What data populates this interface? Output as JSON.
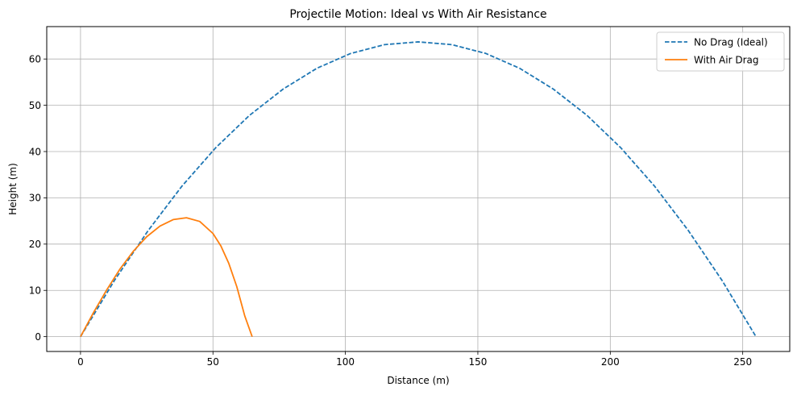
{
  "chart_data": {
    "type": "line",
    "title": "Projectile Motion: Ideal vs With Air Resistance",
    "xlabel": "Distance (m)",
    "ylabel": "Height (m)",
    "xlim": [
      -12.75,
      267.75
    ],
    "ylim": [
      -3.2,
      67
    ],
    "xticks": [
      0,
      50,
      100,
      150,
      200,
      250
    ],
    "yticks": [
      0,
      10,
      20,
      30,
      40,
      50,
      60
    ],
    "grid": true,
    "legend_position": "top-right",
    "series": [
      {
        "name": "No Drag (Ideal)",
        "color": "#1f77b4",
        "linestyle": "dashed",
        "x": [
          0,
          12.75,
          25.5,
          38.25,
          51,
          63.75,
          76.5,
          89.25,
          102,
          114.75,
          127.5,
          140.25,
          153,
          165.75,
          178.5,
          191.25,
          204,
          216.75,
          229.5,
          242.25,
          255
        ],
        "y": [
          0,
          12.1,
          22.9,
          32.5,
          40.8,
          47.8,
          53.5,
          58,
          61.2,
          63.1,
          63.7,
          63.1,
          61.2,
          58,
          53.5,
          47.8,
          40.8,
          32.5,
          22.9,
          12.1,
          0
        ]
      },
      {
        "name": "With Air Drag",
        "color": "#ff7f0e",
        "linestyle": "solid",
        "x": [
          0,
          5,
          10,
          15,
          20,
          25,
          30,
          35,
          40,
          45,
          50,
          53,
          56,
          59,
          62,
          64.8
        ],
        "y": [
          0,
          5.3,
          10.2,
          14.7,
          18.5,
          21.6,
          23.9,
          25.3,
          25.7,
          24.9,
          22.3,
          19.6,
          15.8,
          10.8,
          4.5,
          0
        ]
      }
    ]
  }
}
